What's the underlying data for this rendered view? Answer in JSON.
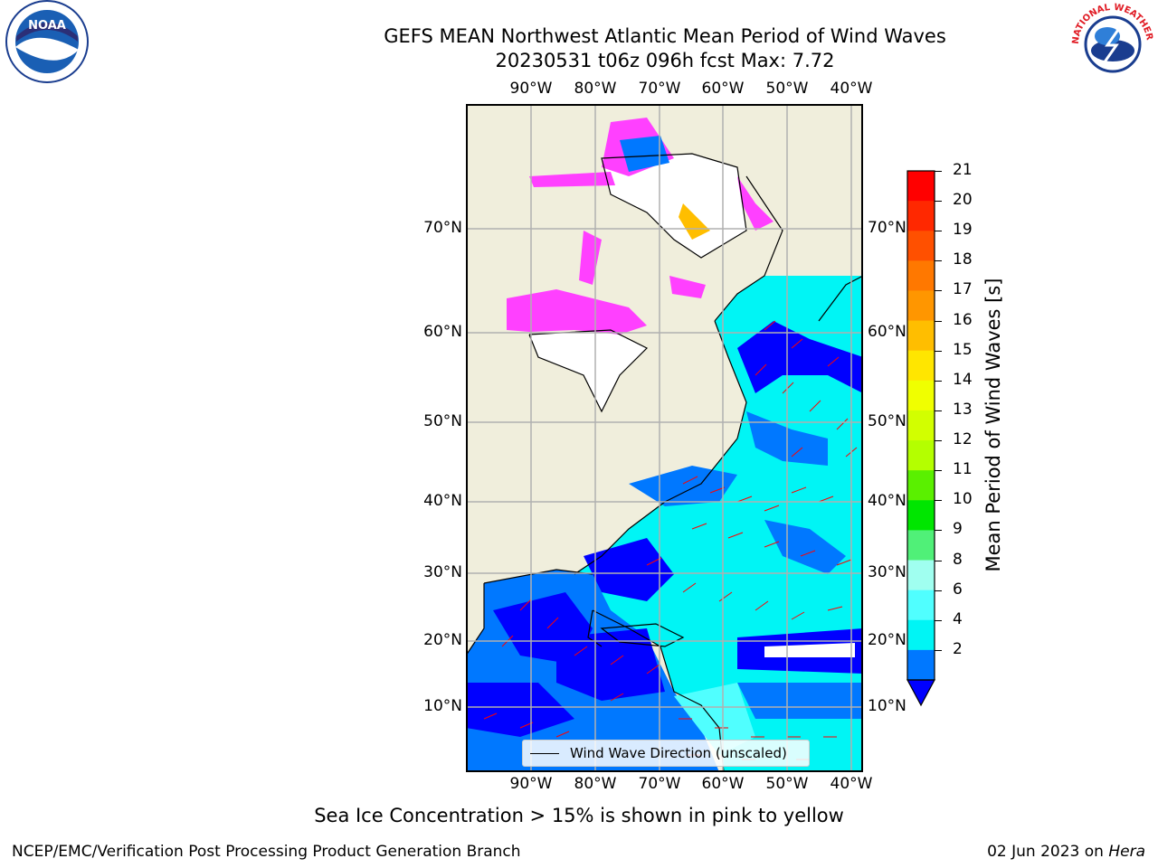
{
  "title_line1": "GEFS MEAN Northwest Atlantic Mean Period of Wind Waves",
  "title_line2": "20230531 t06z 096h fcst   Max: 7.72",
  "lon_labels": [
    "90°W",
    "80°W",
    "70°W",
    "60°W",
    "50°W",
    "40°W"
  ],
  "lat_labels": [
    "70°N",
    "60°N",
    "50°N",
    "40°N",
    "30°N",
    "20°N",
    "10°N"
  ],
  "colorbar": {
    "title": "Mean Period of Wind Waves [s]",
    "ticks": [
      "21",
      "20",
      "19",
      "18",
      "17",
      "16",
      "15",
      "14",
      "13",
      "12",
      "11",
      "10",
      "9",
      "8",
      "6",
      "4",
      "2"
    ],
    "colors": [
      "#ff0000",
      "#ff2800",
      "#ff5000",
      "#ff7800",
      "#ff9600",
      "#ffbe00",
      "#ffe600",
      "#f0ff00",
      "#d2ff00",
      "#b4ff00",
      "#5af000",
      "#00e600",
      "#50f078",
      "#a0fff0",
      "#50ffff",
      "#00f5f5",
      "#0078ff"
    ],
    "extend_color": "#0000ff"
  },
  "legend_label": "Wind Wave Direction (unscaled)",
  "note": "Sea Ice Concentration > 15% is shown in pink to yellow",
  "footer_left": "NCEP/EMC/Verification Post Processing Product Generation Branch",
  "footer_date": "02 Jun 2023 on ",
  "footer_host": "Hera",
  "logo_left": "NOAA",
  "logo_right": "NATIONAL WEATHER SERVICE",
  "colors": {
    "land": "#f0eedc",
    "ice_free": "#ffffff",
    "arrow": "#ff0000",
    "grid": "#b0b0b0"
  }
}
